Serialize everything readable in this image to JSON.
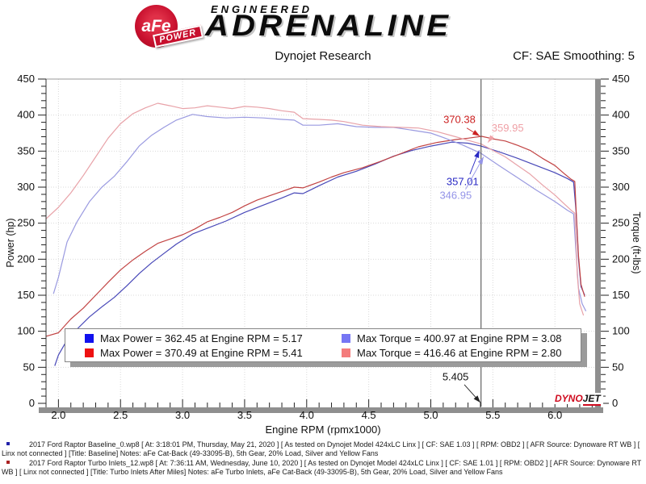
{
  "header": {
    "engineered": "ENGINEERED",
    "adrenaline": "ADRENALINE",
    "logo": {
      "name": "aFe",
      "reg": "®",
      "power": "POWER"
    },
    "title": "Dynojet Research",
    "smoothing": "CF: SAE Smoothing: 5"
  },
  "legend": {
    "items": [
      {
        "color": "#1111ee",
        "label": "Max Power = 362.45 at Engine RPM = 5.17"
      },
      {
        "color": "#7676f4",
        "label": "Max Torque = 400.97 at Engine RPM = 3.08"
      },
      {
        "color": "#ee1111",
        "label": "Max Power = 370.49 at Engine RPM = 5.41"
      },
      {
        "color": "#f47c7c",
        "label": "Max Torque = 416.46 at Engine RPM = 2.80"
      }
    ]
  },
  "watermark": {
    "dyno": "DYNO",
    "jet": "JET"
  },
  "footer": {
    "runs": [
      {
        "bullet_color": "#2222aa",
        "text": "2017 Ford Raptor Baseline_0.wp8 [ At: 3:18:01 PM, Thursday, May 21, 2020 ] [ As tested on Dynojet Model 424xLC Linx ] [ CF: SAE 1.03 ] [ RPM: OBD2 ] [ AFR Source: Dynoware RT WB ] [ Linx not connected ] [Title: Baseline]   Notes: aFe Cat-Back (49-33095-B), 5th Gear, 20% Load, Silver and Yellow Fans"
      },
      {
        "bullet_color": "#aa2222",
        "text": "2017 Ford Raptor Turbo Inlets_12.wp8 [ At: 7:36:11 AM, Wednesday, June 10, 2020 ] [ As tested on Dynojet Model 424xLC Linx ] [ CF: SAE 1.01 ] [ RPM: OBD2 ] [ AFR Source: Dynoware RT WB ] [ Linx not connected ] [Title: Turbo Inlets After Miles]   Notes: aFe Turbo Inlets, aFe Cat-Back (49-33095-B), 5th Gear, 20% Load, Silver and Yellow Fans"
      }
    ]
  },
  "chart_data": {
    "type": "line",
    "title": "Dynojet Research",
    "xlabel": "Engine RPM (rpmx1000)",
    "ylabel_left": "Power (hp)",
    "ylabel_right": "Torque (ft-lbs)",
    "x_range": [
      1.9,
      6.35
    ],
    "y_range": [
      0,
      450
    ],
    "x_major_step": 0.5,
    "x_minor_step": 0.1,
    "y_major_step": 50,
    "y_minor_step": 10,
    "x_tick_labels": [
      "2.0",
      "2.5",
      "3.0",
      "3.5",
      "4.0",
      "4.5",
      "5.0",
      "5.5",
      "6.0"
    ],
    "grid": true,
    "legend_position": "bottom-inside",
    "cursor": {
      "rpm": 5.405,
      "label": "5.405",
      "label_anchor": "end",
      "text_at": [
        5.305,
        32
      ],
      "arrow_from": [
        5.27,
        26
      ],
      "arrow_to": [
        5.4,
        1
      ]
    },
    "series": [
      {
        "id": "power-baseline",
        "name": "Baseline Power (hp)",
        "color": "#4848b8",
        "max": {
          "value": 362.45,
          "rpm": 5.17
        },
        "points": [
          [
            1.97,
            52
          ],
          [
            2.0,
            67
          ],
          [
            2.07,
            88
          ],
          [
            2.15,
            103
          ],
          [
            2.25,
            120
          ],
          [
            2.35,
            134
          ],
          [
            2.45,
            147
          ],
          [
            2.55,
            163
          ],
          [
            2.65,
            180
          ],
          [
            2.75,
            195
          ],
          [
            2.85,
            208
          ],
          [
            2.95,
            221
          ],
          [
            3.08,
            235
          ],
          [
            3.2,
            243
          ],
          [
            3.35,
            253
          ],
          [
            3.5,
            265
          ],
          [
            3.65,
            275
          ],
          [
            3.8,
            285
          ],
          [
            3.9,
            292
          ],
          [
            3.97,
            291
          ],
          [
            4.1,
            302
          ],
          [
            4.25,
            314
          ],
          [
            4.4,
            322
          ],
          [
            4.55,
            332
          ],
          [
            4.7,
            343
          ],
          [
            4.85,
            351
          ],
          [
            5.0,
            357
          ],
          [
            5.17,
            362.45
          ],
          [
            5.3,
            361
          ],
          [
            5.405,
            357.01
          ],
          [
            5.55,
            349
          ],
          [
            5.7,
            340
          ],
          [
            5.85,
            330
          ],
          [
            6.0,
            320
          ],
          [
            6.1,
            312
          ],
          [
            6.15,
            307
          ],
          [
            6.17,
            268
          ],
          [
            6.19,
            200
          ],
          [
            6.21,
            162
          ],
          [
            6.24,
            150
          ]
        ]
      },
      {
        "id": "power-inlets",
        "name": "Turbo Inlets Power (hp)",
        "color": "#c24444",
        "max": {
          "value": 370.49,
          "rpm": 5.41
        },
        "points": [
          [
            1.9,
            93
          ],
          [
            2.0,
            98
          ],
          [
            2.1,
            117
          ],
          [
            2.2,
            132
          ],
          [
            2.3,
            150
          ],
          [
            2.4,
            168
          ],
          [
            2.5,
            185
          ],
          [
            2.6,
            199
          ],
          [
            2.7,
            211
          ],
          [
            2.8,
            222
          ],
          [
            2.9,
            228
          ],
          [
            3.0,
            234
          ],
          [
            3.1,
            242
          ],
          [
            3.2,
            252
          ],
          [
            3.3,
            258
          ],
          [
            3.4,
            265
          ],
          [
            3.5,
            274
          ],
          [
            3.6,
            282
          ],
          [
            3.7,
            288
          ],
          [
            3.8,
            294
          ],
          [
            3.9,
            300
          ],
          [
            3.97,
            299
          ],
          [
            4.1,
            307
          ],
          [
            4.2,
            314
          ],
          [
            4.3,
            320
          ],
          [
            4.45,
            327
          ],
          [
            4.6,
            336
          ],
          [
            4.75,
            346
          ],
          [
            4.9,
            356
          ],
          [
            5.05,
            362
          ],
          [
            5.2,
            366
          ],
          [
            5.3,
            368
          ],
          [
            5.41,
            370.49
          ],
          [
            5.5,
            367
          ],
          [
            5.6,
            364
          ],
          [
            5.7,
            358
          ],
          [
            5.8,
            351
          ],
          [
            5.9,
            340
          ],
          [
            6.0,
            330
          ],
          [
            6.08,
            318
          ],
          [
            6.13,
            311
          ],
          [
            6.16,
            308
          ],
          [
            6.17,
            272
          ],
          [
            6.19,
            205
          ],
          [
            6.21,
            165
          ],
          [
            6.24,
            148
          ]
        ]
      },
      {
        "id": "torque-baseline",
        "name": "Baseline Torque (ft-lbs)",
        "color": "#9a9ae0",
        "max": {
          "value": 400.97,
          "rpm": 3.08
        },
        "points": [
          [
            1.96,
            152
          ],
          [
            2.0,
            175
          ],
          [
            2.07,
            224
          ],
          [
            2.15,
            252
          ],
          [
            2.25,
            280
          ],
          [
            2.35,
            300
          ],
          [
            2.45,
            315
          ],
          [
            2.55,
            335
          ],
          [
            2.65,
            357
          ],
          [
            2.75,
            372
          ],
          [
            2.85,
            383
          ],
          [
            2.95,
            393
          ],
          [
            3.08,
            400.97
          ],
          [
            3.2,
            398
          ],
          [
            3.35,
            396
          ],
          [
            3.5,
            397
          ],
          [
            3.65,
            396
          ],
          [
            3.8,
            394
          ],
          [
            3.9,
            393
          ],
          [
            3.97,
            386
          ],
          [
            4.1,
            386
          ],
          [
            4.25,
            388
          ],
          [
            4.4,
            384
          ],
          [
            4.55,
            383
          ],
          [
            4.7,
            383
          ],
          [
            4.85,
            379
          ],
          [
            5.0,
            375
          ],
          [
            5.1,
            369
          ],
          [
            5.25,
            359
          ],
          [
            5.405,
            346.95
          ],
          [
            5.55,
            330
          ],
          [
            5.7,
            313
          ],
          [
            5.85,
            296
          ],
          [
            6.0,
            280
          ],
          [
            6.1,
            268
          ],
          [
            6.15,
            263
          ],
          [
            6.17,
            210
          ],
          [
            6.19,
            160
          ],
          [
            6.22,
            138
          ],
          [
            6.25,
            128
          ]
        ]
      },
      {
        "id": "torque-inlets",
        "name": "Turbo Inlets Torque (ft-lbs)",
        "color": "#e8a2a8",
        "max": {
          "value": 416.46,
          "rpm": 2.8
        },
        "points": [
          [
            1.9,
            256
          ],
          [
            2.0,
            272
          ],
          [
            2.1,
            292
          ],
          [
            2.2,
            316
          ],
          [
            2.3,
            342
          ],
          [
            2.4,
            368
          ],
          [
            2.5,
            388
          ],
          [
            2.6,
            402
          ],
          [
            2.7,
            410
          ],
          [
            2.8,
            416.46
          ],
          [
            2.9,
            413
          ],
          [
            3.0,
            409
          ],
          [
            3.1,
            410
          ],
          [
            3.2,
            413
          ],
          [
            3.3,
            411
          ],
          [
            3.4,
            409
          ],
          [
            3.5,
            412
          ],
          [
            3.6,
            411
          ],
          [
            3.7,
            409
          ],
          [
            3.8,
            406
          ],
          [
            3.9,
            404
          ],
          [
            3.97,
            395
          ],
          [
            4.1,
            394
          ],
          [
            4.2,
            393
          ],
          [
            4.3,
            391
          ],
          [
            4.45,
            386
          ],
          [
            4.6,
            384
          ],
          [
            4.75,
            383
          ],
          [
            4.9,
            382
          ],
          [
            5.05,
            377
          ],
          [
            5.2,
            370
          ],
          [
            5.3,
            365
          ],
          [
            5.405,
            359.95
          ],
          [
            5.5,
            351
          ],
          [
            5.6,
            342
          ],
          [
            5.7,
            330
          ],
          [
            5.8,
            318
          ],
          [
            5.9,
            303
          ],
          [
            6.0,
            289
          ],
          [
            6.08,
            276
          ],
          [
            6.13,
            268
          ],
          [
            6.16,
            264
          ],
          [
            6.17,
            225
          ],
          [
            6.18,
            178
          ],
          [
            6.2,
            138
          ],
          [
            6.23,
            122
          ]
        ]
      }
    ],
    "annotations": [
      {
        "text": "370.38",
        "color": "#cc2222",
        "anchor": "end",
        "text_at": [
          5.36,
          389
        ],
        "arrow_from": [
          5.29,
          382
        ],
        "arrow_to": [
          5.395,
          371
        ]
      },
      {
        "text": "359.95",
        "color": "#efa0a6",
        "anchor": "start",
        "text_at": [
          5.49,
          377
        ],
        "arrow_from": [
          5.5,
          371
        ],
        "arrow_to": [
          5.46,
          362
        ]
      },
      {
        "text": "357.01",
        "color": "#2929c4",
        "anchor": "end",
        "text_at": [
          5.385,
          303
        ],
        "arrow_from": [
          5.315,
          318
        ],
        "arrow_to": [
          5.39,
          351
        ]
      },
      {
        "text": "346.95",
        "color": "#9494e8",
        "anchor": "end",
        "text_at": [
          5.33,
          284
        ],
        "arrow_from": [
          5.28,
          297
        ],
        "arrow_to": [
          5.425,
          342
        ]
      }
    ]
  }
}
